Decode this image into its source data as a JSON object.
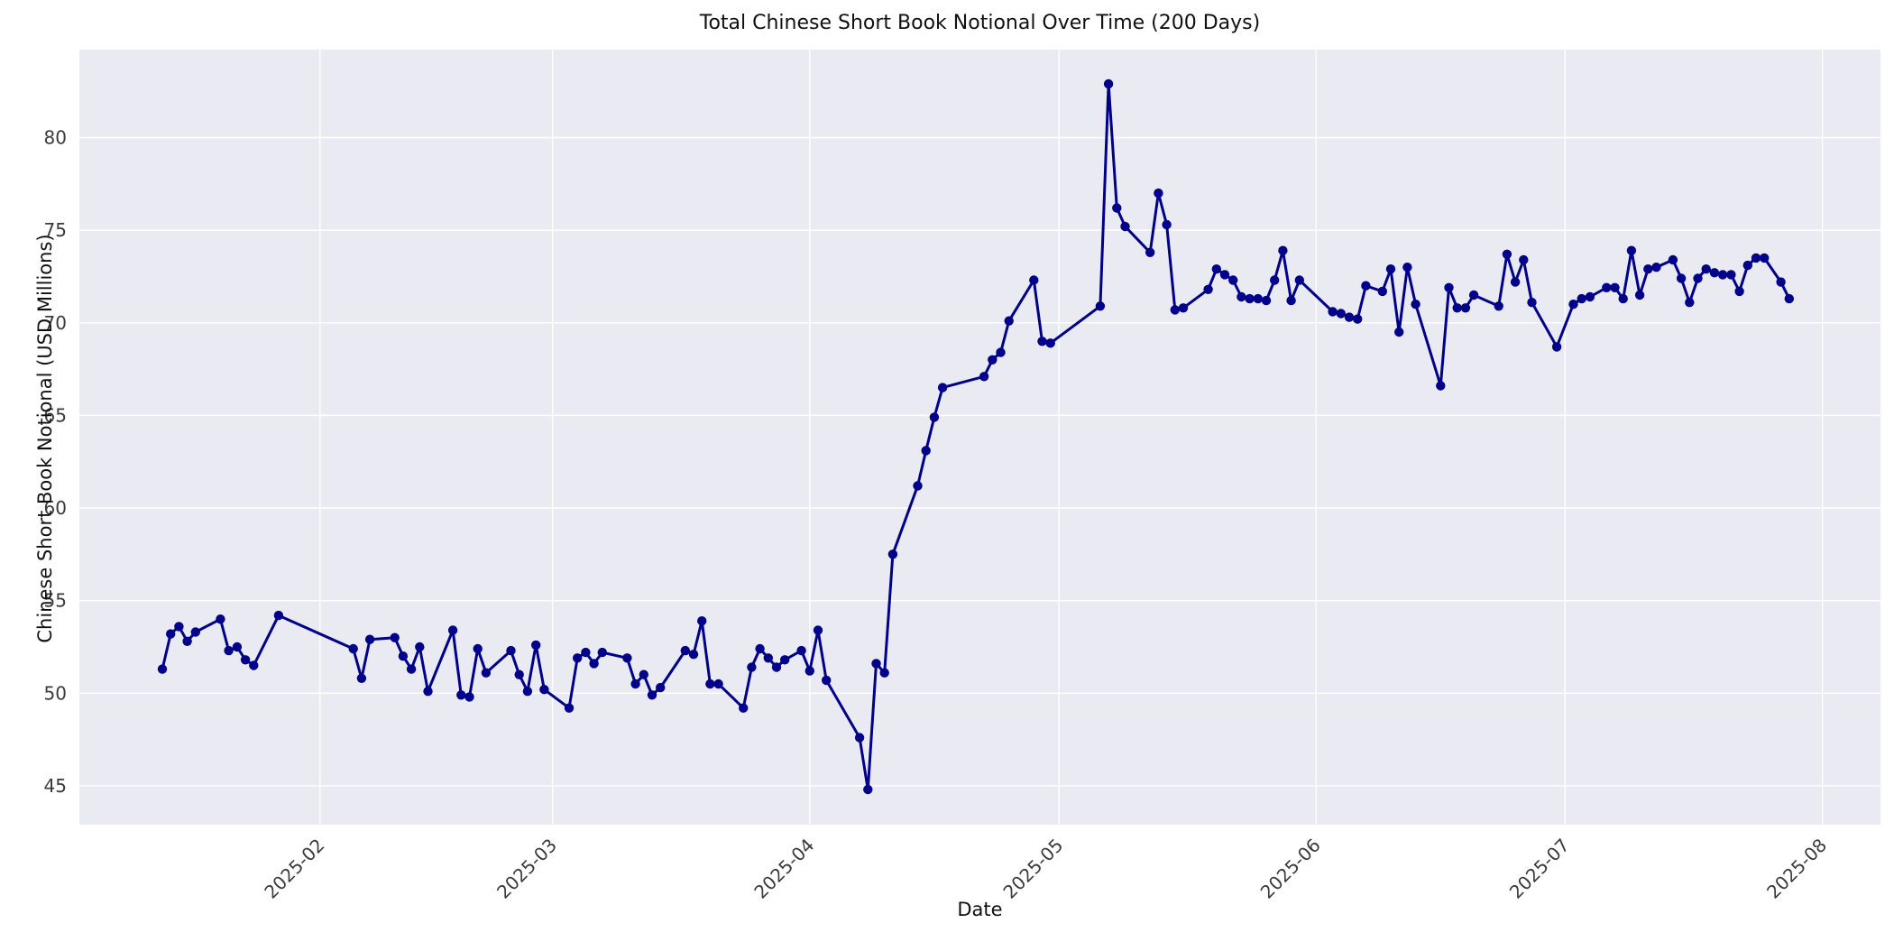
{
  "chart_data": {
    "type": "line",
    "title": "Total Chinese Short Book Notional Over Time (200 Days)",
    "xlabel": "Date",
    "ylabel": "Chinese Short Book Notional (USD Millions)",
    "legend": false,
    "grid": true,
    "background_color": "#eaeaf2",
    "grid_color": "#ffffff",
    "tick_label_color": "#3b3b3b",
    "xlim": [
      "2025-01-03",
      "2025-08-08"
    ],
    "ylim": [
      42.9,
      84.75
    ],
    "y_ticks": [
      45,
      50,
      55,
      60,
      65,
      70,
      75,
      80
    ],
    "x_ticks": [
      {
        "date": "2025-02-01",
        "label": "2025-02"
      },
      {
        "date": "2025-03-01",
        "label": "2025-03"
      },
      {
        "date": "2025-04-01",
        "label": "2025-04"
      },
      {
        "date": "2025-05-01",
        "label": "2025-05"
      },
      {
        "date": "2025-06-01",
        "label": "2025-06"
      },
      {
        "date": "2025-07-01",
        "label": "2025-07"
      },
      {
        "date": "2025-08-01",
        "label": "2025-08"
      }
    ],
    "series": [
      {
        "name": "Chinese Short Book Notional",
        "color": "#00008b",
        "marker": "circle",
        "line_width": 3,
        "points": [
          [
            "2025-01-13",
            51.3
          ],
          [
            "2025-01-14",
            53.2
          ],
          [
            "2025-01-15",
            53.6
          ],
          [
            "2025-01-16",
            52.8
          ],
          [
            "2025-01-17",
            53.3
          ],
          [
            "2025-01-20",
            54.0
          ],
          [
            "2025-01-21",
            52.3
          ],
          [
            "2025-01-22",
            52.5
          ],
          [
            "2025-01-23",
            51.8
          ],
          [
            "2025-01-24",
            51.5
          ],
          [
            "2025-01-27",
            54.2
          ],
          [
            "2025-02-05",
            52.4
          ],
          [
            "2025-02-06",
            50.8
          ],
          [
            "2025-02-07",
            52.9
          ],
          [
            "2025-02-10",
            53.0
          ],
          [
            "2025-02-11",
            52.0
          ],
          [
            "2025-02-12",
            51.3
          ],
          [
            "2025-02-13",
            52.5
          ],
          [
            "2025-02-14",
            50.1
          ],
          [
            "2025-02-17",
            53.4
          ],
          [
            "2025-02-18",
            49.9
          ],
          [
            "2025-02-19",
            49.8
          ],
          [
            "2025-02-20",
            52.4
          ],
          [
            "2025-02-21",
            51.1
          ],
          [
            "2025-02-24",
            52.3
          ],
          [
            "2025-02-25",
            51.0
          ],
          [
            "2025-02-26",
            50.1
          ],
          [
            "2025-02-27",
            52.6
          ],
          [
            "2025-02-28",
            50.2
          ],
          [
            "2025-03-03",
            49.2
          ],
          [
            "2025-03-04",
            51.9
          ],
          [
            "2025-03-05",
            52.2
          ],
          [
            "2025-03-06",
            51.6
          ],
          [
            "2025-03-07",
            52.2
          ],
          [
            "2025-03-10",
            51.9
          ],
          [
            "2025-03-11",
            50.5
          ],
          [
            "2025-03-12",
            51.0
          ],
          [
            "2025-03-13",
            49.9
          ],
          [
            "2025-03-14",
            50.3
          ],
          [
            "2025-03-17",
            52.3
          ],
          [
            "2025-03-18",
            52.1
          ],
          [
            "2025-03-19",
            53.9
          ],
          [
            "2025-03-20",
            50.5
          ],
          [
            "2025-03-21",
            50.5
          ],
          [
            "2025-03-24",
            49.2
          ],
          [
            "2025-03-25",
            51.4
          ],
          [
            "2025-03-26",
            52.4
          ],
          [
            "2025-03-27",
            51.9
          ],
          [
            "2025-03-28",
            51.4
          ],
          [
            "2025-03-29",
            51.8
          ],
          [
            "2025-03-31",
            52.3
          ],
          [
            "2025-04-01",
            51.2
          ],
          [
            "2025-04-02",
            53.4
          ],
          [
            "2025-04-03",
            50.7
          ],
          [
            "2025-04-07",
            47.6
          ],
          [
            "2025-04-08",
            44.8
          ],
          [
            "2025-04-09",
            51.6
          ],
          [
            "2025-04-10",
            51.1
          ],
          [
            "2025-04-11",
            57.5
          ],
          [
            "2025-04-14",
            61.2
          ],
          [
            "2025-04-15",
            63.1
          ],
          [
            "2025-04-16",
            64.9
          ],
          [
            "2025-04-17",
            66.5
          ],
          [
            "2025-04-22",
            67.1
          ],
          [
            "2025-04-23",
            68.0
          ],
          [
            "2025-04-24",
            68.4
          ],
          [
            "2025-04-25",
            70.1
          ],
          [
            "2025-04-28",
            72.3
          ],
          [
            "2025-04-29",
            69.0
          ],
          [
            "2025-04-30",
            68.9
          ],
          [
            "2025-05-06",
            70.9
          ],
          [
            "2025-05-07",
            82.9
          ],
          [
            "2025-05-08",
            76.2
          ],
          [
            "2025-05-09",
            75.2
          ],
          [
            "2025-05-12",
            73.8
          ],
          [
            "2025-05-13",
            77.0
          ],
          [
            "2025-05-14",
            75.3
          ],
          [
            "2025-05-15",
            70.7
          ],
          [
            "2025-05-16",
            70.8
          ],
          [
            "2025-05-19",
            71.8
          ],
          [
            "2025-05-20",
            72.9
          ],
          [
            "2025-05-21",
            72.6
          ],
          [
            "2025-05-22",
            72.3
          ],
          [
            "2025-05-23",
            71.4
          ],
          [
            "2025-05-24",
            71.3
          ],
          [
            "2025-05-25",
            71.3
          ],
          [
            "2025-05-26",
            71.2
          ],
          [
            "2025-05-27",
            72.3
          ],
          [
            "2025-05-28",
            73.9
          ],
          [
            "2025-05-29",
            71.2
          ],
          [
            "2025-05-30",
            72.3
          ],
          [
            "2025-06-03",
            70.6
          ],
          [
            "2025-06-04",
            70.5
          ],
          [
            "2025-06-05",
            70.3
          ],
          [
            "2025-06-06",
            70.2
          ],
          [
            "2025-06-07",
            72.0
          ],
          [
            "2025-06-09",
            71.7
          ],
          [
            "2025-06-10",
            72.9
          ],
          [
            "2025-06-11",
            69.5
          ],
          [
            "2025-06-12",
            73.0
          ],
          [
            "2025-06-13",
            71.0
          ],
          [
            "2025-06-16",
            66.6
          ],
          [
            "2025-06-17",
            71.9
          ],
          [
            "2025-06-18",
            70.8
          ],
          [
            "2025-06-19",
            70.8
          ],
          [
            "2025-06-20",
            71.5
          ],
          [
            "2025-06-23",
            70.9
          ],
          [
            "2025-06-24",
            73.7
          ],
          [
            "2025-06-25",
            72.2
          ],
          [
            "2025-06-26",
            73.4
          ],
          [
            "2025-06-27",
            71.1
          ],
          [
            "2025-06-30",
            68.7
          ],
          [
            "2025-07-02",
            71.0
          ],
          [
            "2025-07-03",
            71.3
          ],
          [
            "2025-07-04",
            71.4
          ],
          [
            "2025-07-06",
            71.9
          ],
          [
            "2025-07-07",
            71.9
          ],
          [
            "2025-07-08",
            71.3
          ],
          [
            "2025-07-09",
            73.9
          ],
          [
            "2025-07-10",
            71.5
          ],
          [
            "2025-07-11",
            72.9
          ],
          [
            "2025-07-12",
            73.0
          ],
          [
            "2025-07-14",
            73.4
          ],
          [
            "2025-07-15",
            72.4
          ],
          [
            "2025-07-16",
            71.1
          ],
          [
            "2025-07-17",
            72.4
          ],
          [
            "2025-07-18",
            72.9
          ],
          [
            "2025-07-19",
            72.7
          ],
          [
            "2025-07-20",
            72.6
          ],
          [
            "2025-07-21",
            72.6
          ],
          [
            "2025-07-22",
            71.7
          ],
          [
            "2025-07-23",
            73.1
          ],
          [
            "2025-07-24",
            73.5
          ],
          [
            "2025-07-25",
            73.5
          ],
          [
            "2025-07-27",
            72.2
          ],
          [
            "2025-07-28",
            71.3
          ]
        ]
      }
    ]
  }
}
